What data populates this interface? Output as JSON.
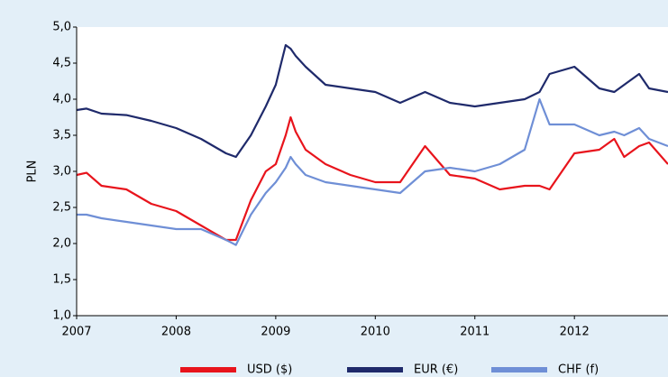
{
  "chart_data": {
    "type": "line",
    "y_label": "PLN",
    "x": [
      2007,
      2007.1,
      2007.25,
      2007.5,
      2007.75,
      2008,
      2008.25,
      2008.5,
      2008.6,
      2008.75,
      2008.9,
      2009,
      2009.1,
      2009.15,
      2009.2,
      2009.3,
      2009.5,
      2009.75,
      2010,
      2010.25,
      2010.5,
      2010.75,
      2011,
      2011.25,
      2011.5,
      2011.65,
      2011.75,
      2012,
      2012.25,
      2012.4,
      2012.5,
      2012.65,
      2012.75,
      2012.94
    ],
    "series": [
      {
        "name": "USD ($)",
        "color": "#e8141c",
        "values": [
          2.95,
          2.98,
          2.8,
          2.75,
          2.55,
          2.45,
          2.25,
          2.05,
          2.05,
          2.6,
          3.0,
          3.1,
          3.5,
          3.75,
          3.55,
          3.3,
          3.1,
          2.95,
          2.85,
          2.85,
          3.35,
          2.95,
          2.9,
          2.75,
          2.8,
          2.8,
          2.75,
          3.25,
          3.3,
          3.45,
          3.2,
          3.35,
          3.4,
          3.1
        ]
      },
      {
        "name": "EUR (€)",
        "color": "#1f2a6b",
        "values": [
          3.85,
          3.87,
          3.8,
          3.78,
          3.7,
          3.6,
          3.45,
          3.25,
          3.2,
          3.5,
          3.9,
          4.2,
          4.75,
          4.7,
          4.6,
          4.45,
          4.2,
          4.15,
          4.1,
          3.95,
          4.1,
          3.95,
          3.9,
          3.95,
          4.0,
          4.1,
          4.35,
          4.45,
          4.15,
          4.1,
          4.2,
          4.35,
          4.15,
          4.1
        ]
      },
      {
        "name": "CHF (f)",
        "color": "#6f8fd6",
        "values": [
          2.4,
          2.4,
          2.35,
          2.3,
          2.25,
          2.2,
          2.2,
          2.05,
          1.98,
          2.4,
          2.7,
          2.85,
          3.05,
          3.2,
          3.1,
          2.95,
          2.85,
          2.8,
          2.75,
          2.7,
          3.0,
          3.05,
          3.0,
          3.1,
          3.3,
          4.0,
          3.65,
          3.65,
          3.5,
          3.55,
          3.5,
          3.6,
          3.45,
          3.35
        ]
      }
    ],
    "xlim": [
      2007,
      2012.94
    ],
    "xticks": [
      2007,
      2008,
      2009,
      2010,
      2011,
      2012
    ],
    "ylim": [
      1,
      5
    ],
    "yticks": [
      {
        "value": 1,
        "label": "1,0"
      },
      {
        "value": 1.5,
        "label": "1,5"
      },
      {
        "value": 2,
        "label": "2,0"
      },
      {
        "value": 2.5,
        "label": "2,5"
      },
      {
        "value": 3,
        "label": "3,0"
      },
      {
        "value": 3.5,
        "label": "3,5"
      },
      {
        "value": 4,
        "label": "4,0"
      },
      {
        "value": 4.5,
        "label": "4,5"
      },
      {
        "value": 5,
        "label": "5,0"
      }
    ],
    "grid": false,
    "legend": "bottom"
  }
}
